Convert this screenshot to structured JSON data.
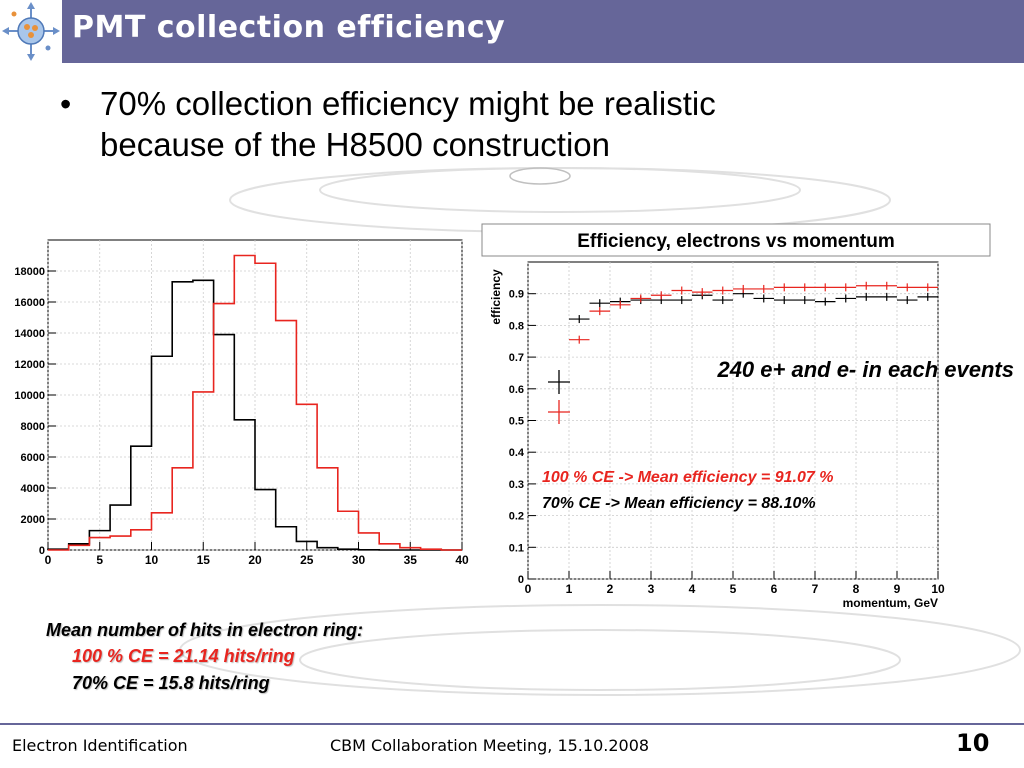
{
  "slide": {
    "title": "PMT collection efficiency",
    "bullet_marker": "•",
    "bullet_lines": [
      "70% collection efficiency might be realistic",
      "because of the H8500 construction"
    ],
    "hits_summary": {
      "title": "Mean number of hits in electron ring:",
      "line_100": "100 % CE = 21.14 hits/ring",
      "line_70": "70% CE = 15.8 hits/ring"
    },
    "footer": {
      "left": "Electron Identification",
      "center": "CBM Collaboration Meeting, 15.10.2008",
      "page": "10"
    },
    "colors": {
      "title_bar": "#666699",
      "red": "#e8251f",
      "black": "#000000",
      "footer_line": "#666699"
    }
  },
  "chart_data": [
    {
      "type": "histogram",
      "title": "",
      "xlabel": "",
      "ylabel": "",
      "xlim": [
        0,
        40
      ],
      "ylim": [
        0,
        20000
      ],
      "x_ticks": [
        0,
        5,
        10,
        15,
        20,
        25,
        30,
        35,
        40
      ],
      "y_ticks": [
        0,
        2000,
        4000,
        6000,
        8000,
        10000,
        12000,
        14000,
        16000,
        18000
      ],
      "bin_edges": [
        0,
        2,
        4,
        6,
        8,
        10,
        12,
        14,
        16,
        18,
        20,
        22,
        24,
        26,
        28,
        30,
        32,
        34,
        36,
        38,
        40
      ],
      "series": [
        {
          "color": "#000000",
          "values": [
            50,
            400,
            1250,
            2900,
            6700,
            12500,
            17300,
            17400,
            13900,
            8400,
            3900,
            1500,
            550,
            150,
            50,
            10,
            0,
            0,
            0,
            0
          ]
        },
        {
          "color": "#e8251f",
          "values": [
            0,
            300,
            800,
            900,
            1300,
            2400,
            5300,
            10200,
            15900,
            19000,
            18500,
            14800,
            9400,
            5300,
            2500,
            1100,
            400,
            150,
            50,
            0
          ]
        }
      ]
    },
    {
      "type": "scatter",
      "title": "Efficiency, electrons vs momentum",
      "xlabel": "momentum, GeV",
      "ylabel": "efficiency",
      "xlim": [
        0,
        10
      ],
      "ylim": [
        0,
        1.0
      ],
      "x_ticks": [
        0,
        1,
        2,
        3,
        4,
        5,
        6,
        7,
        8,
        9,
        10
      ],
      "y_ticks": [
        0,
        0.1,
        0.2,
        0.3,
        0.4,
        0.5,
        0.6,
        0.7,
        0.8,
        0.9
      ],
      "x_tick_labels": [
        "0",
        "1",
        "2",
        "3",
        "4",
        "5",
        "6",
        "7",
        "8",
        "9",
        "10"
      ],
      "y_tick_labels": [
        "0",
        "0.1",
        "0.2",
        "0.3",
        "0.4",
        "0.5",
        "0.6",
        "0.7",
        "0.8",
        "0.9"
      ],
      "bin_half_width": 0.25,
      "series": [
        {
          "color": "#000000",
          "x": [
            1.25,
            1.75,
            2.25,
            2.75,
            3.25,
            3.75,
            4.25,
            4.75,
            5.25,
            5.75,
            6.25,
            6.75,
            7.25,
            7.75,
            8.25,
            8.75,
            9.25,
            9.75
          ],
          "y": [
            0.82,
            0.87,
            0.875,
            0.88,
            0.88,
            0.88,
            0.895,
            0.88,
            0.9,
            0.885,
            0.88,
            0.88,
            0.875,
            0.885,
            0.89,
            0.89,
            0.88,
            0.89
          ]
        },
        {
          "color": "#e8251f",
          "x": [
            1.25,
            1.75,
            2.25,
            2.75,
            3.25,
            3.75,
            4.25,
            4.75,
            5.25,
            5.75,
            6.25,
            6.75,
            7.25,
            7.75,
            8.25,
            8.75,
            9.25,
            9.75
          ],
          "y": [
            0.755,
            0.845,
            0.865,
            0.885,
            0.895,
            0.91,
            0.905,
            0.91,
            0.915,
            0.915,
            0.92,
            0.92,
            0.92,
            0.92,
            0.925,
            0.925,
            0.92,
            0.92
          ]
        }
      ],
      "annotation": "240 e+ and e- in each events",
      "legend_lines": {
        "red": "100 % CE -> Mean efficiency = 91.07 %",
        "black": "70% CE -> Mean efficiency = 88.10%"
      }
    }
  ]
}
